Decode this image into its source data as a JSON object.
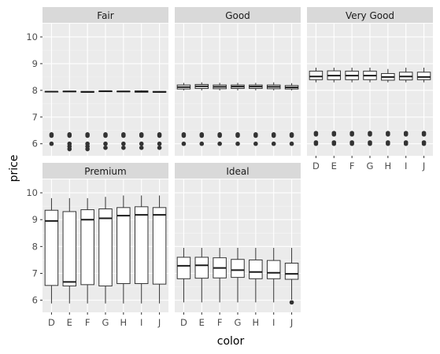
{
  "chart_data": {
    "type": "boxplot",
    "facet_by": "cut",
    "xlabel": "color",
    "ylabel": "price",
    "categories": [
      "D",
      "E",
      "F",
      "G",
      "H",
      "I",
      "J"
    ],
    "ylim": [
      5.55,
      10.5
    ],
    "yticks": [
      6,
      7,
      8,
      9,
      10
    ],
    "grid": true,
    "legend": "none",
    "panels": [
      {
        "name": "Fair",
        "boxes": [
          {
            "low": 7.93,
            "q1": 7.94,
            "median": 7.95,
            "q3": 7.96,
            "high": 7.97,
            "outliers": [
              6.3,
              6.35,
              6.0
            ]
          },
          {
            "low": 7.94,
            "q1": 7.95,
            "median": 7.96,
            "q3": 7.97,
            "high": 7.98,
            "outliers": [
              6.3,
              6.35,
              6.0,
              5.9,
              5.8
            ]
          },
          {
            "low": 7.92,
            "q1": 7.93,
            "median": 7.94,
            "q3": 7.96,
            "high": 7.97,
            "outliers": [
              6.3,
              6.35,
              6.0,
              5.9,
              5.8
            ]
          },
          {
            "low": 7.94,
            "q1": 7.95,
            "median": 7.97,
            "q3": 7.98,
            "high": 7.99,
            "outliers": [
              6.3,
              6.35,
              6.0,
              5.85
            ]
          },
          {
            "low": 7.94,
            "q1": 7.95,
            "median": 7.96,
            "q3": 7.97,
            "high": 7.98,
            "outliers": [
              6.3,
              6.35,
              6.0,
              5.85
            ]
          },
          {
            "low": 7.92,
            "q1": 7.93,
            "median": 7.95,
            "q3": 7.98,
            "high": 8.0,
            "outliers": [
              6.3,
              6.35,
              6.0,
              5.85
            ]
          },
          {
            "low": 7.92,
            "q1": 7.93,
            "median": 7.94,
            "q3": 7.96,
            "high": 7.97,
            "outliers": [
              6.3,
              6.35,
              6.0,
              5.85
            ]
          }
        ]
      },
      {
        "name": "Good",
        "boxes": [
          {
            "low": 8.0,
            "q1": 8.05,
            "median": 8.12,
            "q3": 8.2,
            "high": 8.28,
            "outliers": [
              6.3,
              6.35,
              6.0
            ]
          },
          {
            "low": 8.0,
            "q1": 8.07,
            "median": 8.15,
            "q3": 8.22,
            "high": 8.3,
            "outliers": [
              6.3,
              6.35,
              6.0
            ]
          },
          {
            "low": 8.0,
            "q1": 8.06,
            "median": 8.13,
            "q3": 8.2,
            "high": 8.28,
            "outliers": [
              6.3,
              6.35,
              6.0
            ]
          },
          {
            "low": 8.0,
            "q1": 8.07,
            "median": 8.14,
            "q3": 8.2,
            "high": 8.28,
            "outliers": [
              6.3,
              6.35,
              6.0
            ]
          },
          {
            "low": 8.0,
            "q1": 8.07,
            "median": 8.14,
            "q3": 8.2,
            "high": 8.28,
            "outliers": [
              6.3,
              6.35,
              6.0
            ]
          },
          {
            "low": 8.0,
            "q1": 8.06,
            "median": 8.13,
            "q3": 8.2,
            "high": 8.3,
            "outliers": [
              6.3,
              6.35,
              6.0
            ]
          },
          {
            "low": 8.0,
            "q1": 8.05,
            "median": 8.11,
            "q3": 8.18,
            "high": 8.27,
            "outliers": [
              6.3,
              6.35,
              6.0
            ]
          }
        ]
      },
      {
        "name": "Very Good",
        "boxes": [
          {
            "low": 8.3,
            "q1": 8.4,
            "median": 8.52,
            "q3": 8.72,
            "high": 8.85,
            "outliers": [
              6.4,
              6.35,
              6.05,
              6.0
            ]
          },
          {
            "low": 8.3,
            "q1": 8.4,
            "median": 8.55,
            "q3": 8.73,
            "high": 8.85,
            "outliers": [
              6.4,
              6.35,
              6.05,
              6.0
            ]
          },
          {
            "low": 8.3,
            "q1": 8.4,
            "median": 8.55,
            "q3": 8.72,
            "high": 8.85,
            "outliers": [
              6.4,
              6.35,
              6.05,
              6.0
            ]
          },
          {
            "low": 8.3,
            "q1": 8.4,
            "median": 8.55,
            "q3": 8.72,
            "high": 8.85,
            "outliers": [
              6.4,
              6.35,
              6.05,
              6.0
            ]
          },
          {
            "low": 8.3,
            "q1": 8.38,
            "median": 8.5,
            "q3": 8.63,
            "high": 8.8,
            "outliers": [
              6.4,
              6.35,
              6.05,
              6.0
            ]
          },
          {
            "low": 8.3,
            "q1": 8.39,
            "median": 8.52,
            "q3": 8.68,
            "high": 8.85,
            "outliers": [
              6.4,
              6.35,
              6.05,
              6.0
            ]
          },
          {
            "low": 8.3,
            "q1": 8.4,
            "median": 8.5,
            "q3": 8.68,
            "high": 8.85,
            "outliers": [
              6.4,
              6.35,
              6.05,
              6.0
            ]
          }
        ]
      },
      {
        "name": "Premium",
        "boxes": [
          {
            "low": 5.88,
            "q1": 6.55,
            "median": 8.95,
            "q3": 9.35,
            "high": 9.8,
            "outliers": []
          },
          {
            "low": 5.88,
            "q1": 6.53,
            "median": 6.68,
            "q3": 9.3,
            "high": 9.8,
            "outliers": []
          },
          {
            "low": 5.88,
            "q1": 6.58,
            "median": 9.0,
            "q3": 9.37,
            "high": 9.8,
            "outliers": []
          },
          {
            "low": 5.88,
            "q1": 6.53,
            "median": 9.05,
            "q3": 9.4,
            "high": 9.85,
            "outliers": []
          },
          {
            "low": 5.88,
            "q1": 6.62,
            "median": 9.15,
            "q3": 9.45,
            "high": 9.9,
            "outliers": []
          },
          {
            "low": 5.88,
            "q1": 6.62,
            "median": 9.18,
            "q3": 9.48,
            "high": 9.9,
            "outliers": []
          },
          {
            "low": 5.88,
            "q1": 6.6,
            "median": 9.18,
            "q3": 9.45,
            "high": 9.9,
            "outliers": []
          }
        ]
      },
      {
        "name": "Ideal",
        "boxes": [
          {
            "low": 5.92,
            "q1": 6.8,
            "median": 7.28,
            "q3": 7.6,
            "high": 7.95,
            "outliers": []
          },
          {
            "low": 5.92,
            "q1": 6.82,
            "median": 7.3,
            "q3": 7.6,
            "high": 7.95,
            "outliers": []
          },
          {
            "low": 5.92,
            "q1": 6.83,
            "median": 7.2,
            "q3": 7.58,
            "high": 7.95,
            "outliers": []
          },
          {
            "low": 5.92,
            "q1": 6.85,
            "median": 7.12,
            "q3": 7.52,
            "high": 7.95,
            "outliers": []
          },
          {
            "low": 5.92,
            "q1": 6.8,
            "median": 7.05,
            "q3": 7.5,
            "high": 7.95,
            "outliers": []
          },
          {
            "low": 5.92,
            "q1": 6.8,
            "median": 7.02,
            "q3": 7.48,
            "high": 7.95,
            "outliers": []
          },
          {
            "low": 6.02,
            "q1": 6.78,
            "median": 6.98,
            "q3": 7.38,
            "high": 7.95,
            "outliers": [
              5.92
            ]
          }
        ]
      }
    ]
  }
}
